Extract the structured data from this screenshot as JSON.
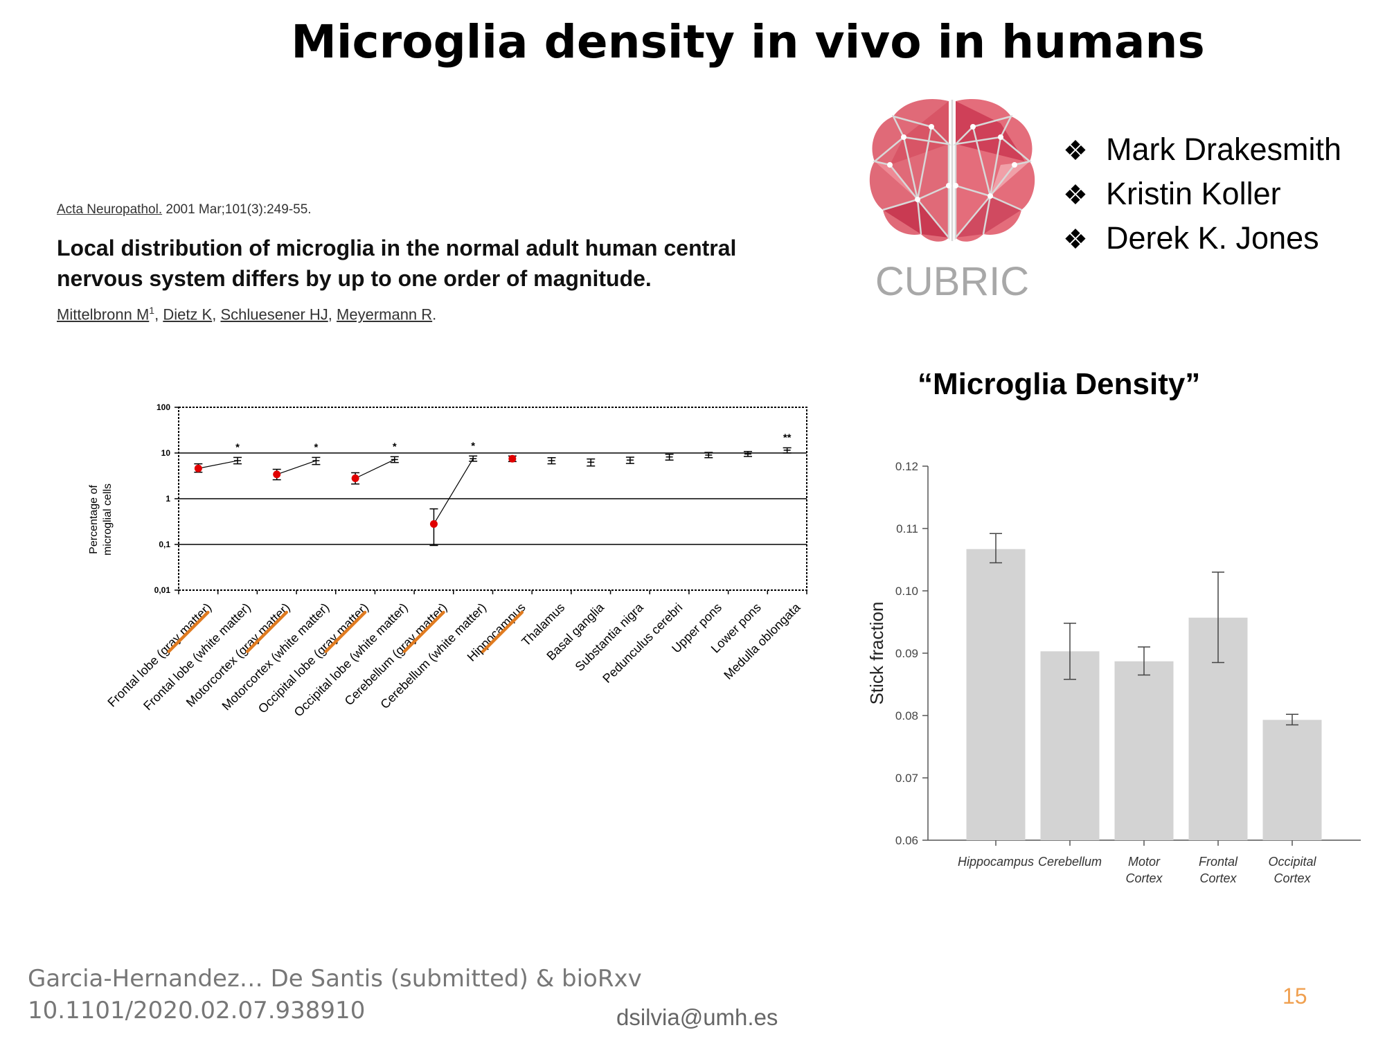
{
  "slide": {
    "title": "Microglia density in vivo in humans",
    "page_number": "15",
    "footer_ref_line1": "Garcia-Hernandez… De Santis (submitted) & bioRxv",
    "footer_ref_line2": "10.1101/2020.02.07.938910",
    "email": "dsilvia@umh.es"
  },
  "paper": {
    "journal": "Acta Neuropathol.",
    "citation": " 2001 Mar;101(3):249-55.",
    "title": "Local distribution of microglia in the normal adult human central nervous system differs by up to one order of magnitude.",
    "authors": [
      {
        "name": "Mittelbronn M",
        "sup": "1",
        "sep": ", "
      },
      {
        "name": "Dietz K",
        "sup": "",
        "sep": ", "
      },
      {
        "name": "Schluesener HJ",
        "sup": "",
        "sep": ", "
      },
      {
        "name": "Meyermann R",
        "sup": "",
        "sep": "."
      }
    ]
  },
  "logo": {
    "text": "CUBRIC",
    "icon": "brain-network-icon"
  },
  "author_list": {
    "bullet_icon": "diamond-bullet-icon",
    "items": [
      "Mark Drakesmith",
      "Kristin Koller",
      "Derek K. Jones"
    ]
  },
  "density_title": "“Microglia Density”",
  "colors": {
    "red_dot": "#e00000",
    "underline": "#e07b20",
    "bar": "#d3d3d3",
    "page_number": "#f0a050",
    "logo_text": "#a8a8a8"
  },
  "chart_data": [
    {
      "type": "scatter",
      "title": "",
      "ylabel": "Percentage of microglial cells",
      "ylabel_lines": [
        "Percentage of",
        "microglial cells"
      ],
      "yscale": "log",
      "ylim": [
        0.01,
        100
      ],
      "yticks": [
        "0,01",
        "0,1",
        "1",
        "10",
        "100"
      ],
      "ytick_values": [
        0.01,
        0.1,
        1,
        10,
        100
      ],
      "categories": [
        "Frontal lobe (gray matter)",
        "Frontal lobe (white matter)",
        "Motorcortex (gray matter)",
        "Motorcortex (white matter)",
        "Occipital lobe (gray matter)",
        "Occipital lobe (white matter)",
        "Cerebellum (gray matter)",
        "Cerebellum (white matter)",
        "Hippocampus",
        "Thalamus",
        "Basal ganglia",
        "Substantia nigra",
        "Pedunculus cerebri",
        "Upper pons",
        "Lower pons",
        "Medulla oblongata"
      ],
      "values": [
        4.6,
        6.8,
        3.4,
        6.8,
        2.8,
        7.2,
        0.28,
        7.5,
        7.5,
        6.8,
        6.3,
        7.0,
        8.2,
        9.0,
        9.5,
        11.5
      ],
      "err_low": [
        3.8,
        5.8,
        2.6,
        5.6,
        2.1,
        6.2,
        0.095,
        6.6,
        6.5,
        5.8,
        5.2,
        5.9,
        7.0,
        7.9,
        8.4,
        10.0
      ],
      "err_high": [
        5.8,
        8.0,
        4.4,
        8.0,
        3.7,
        8.3,
        0.6,
        8.6,
        8.6,
        7.9,
        7.4,
        8.1,
        9.4,
        10.3,
        10.8,
        13.0
      ],
      "highlighted": [
        0,
        2,
        4,
        6,
        8
      ],
      "underlined": [
        0,
        2,
        4,
        6,
        8
      ],
      "pairs": [
        [
          0,
          1
        ],
        [
          2,
          3
        ],
        [
          4,
          5
        ],
        [
          6,
          7
        ]
      ],
      "significance": [
        {
          "index": 1,
          "label": "*"
        },
        {
          "index": 3,
          "label": "*"
        },
        {
          "index": 5,
          "label": "*"
        },
        {
          "index": 7,
          "label": "*"
        },
        {
          "index": 15,
          "label": "**"
        }
      ],
      "grid": "horizontal"
    },
    {
      "type": "bar",
      "title": "",
      "ylabel": "Stick fraction",
      "xlabel": "",
      "ylim": [
        0.06,
        0.12
      ],
      "yticks": [
        "0.06",
        "0.07",
        "0.08",
        "0.09",
        "0.10",
        "0.11",
        "0.12"
      ],
      "ytick_values": [
        0.06,
        0.07,
        0.08,
        0.09,
        0.1,
        0.11,
        0.12
      ],
      "categories": [
        "Hippocampus",
        "Cerebellum",
        "Motor Cortex",
        "Frontal Cortex",
        "Occipital Cortex"
      ],
      "category_lines": [
        [
          "Hippocampus"
        ],
        [
          "Cerebellum"
        ],
        [
          "Motor",
          "Cortex"
        ],
        [
          "Frontal",
          "Cortex"
        ],
        [
          "Occipital",
          "Cortex"
        ]
      ],
      "values": [
        0.1067,
        0.0903,
        0.0887,
        0.0957,
        0.0793
      ],
      "err_low": [
        0.1045,
        0.0858,
        0.0865,
        0.0885,
        0.0785
      ],
      "err_high": [
        0.1092,
        0.0948,
        0.091,
        0.103,
        0.0802
      ]
    }
  ]
}
